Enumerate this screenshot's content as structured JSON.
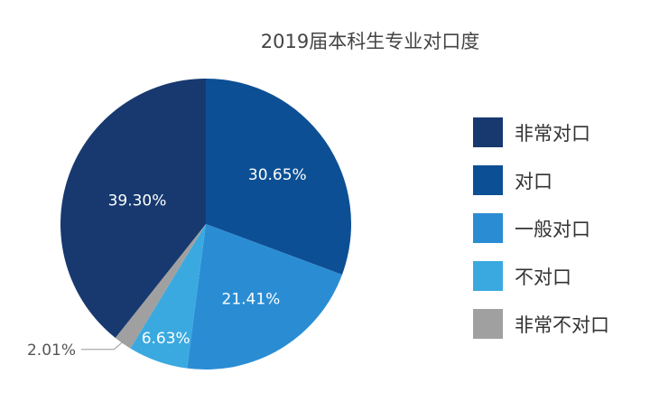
{
  "chart_data": {
    "type": "pie",
    "title": "2019届本科生专业对口度",
    "legend_position": "right",
    "slices": [
      {
        "label": "对口",
        "value": 30.65,
        "display": "30.65%",
        "color": "#0d4f94"
      },
      {
        "label": "一般对口",
        "value": 21.41,
        "display": "21.41%",
        "color": "#2a8dd4"
      },
      {
        "label": "不对口",
        "value": 6.63,
        "display": "6.63%",
        "color": "#3aa9e0"
      },
      {
        "label": "非常不对口",
        "value": 2.01,
        "display": "2.01%",
        "color": "#a0a0a0"
      },
      {
        "label": "非常对口",
        "value": 39.3,
        "display": "39.30%",
        "color": "#17396f"
      }
    ],
    "legend": [
      {
        "label": "非常对口",
        "color": "#17396f"
      },
      {
        "label": "对口",
        "color": "#0d4f94"
      },
      {
        "label": "一般对口",
        "color": "#2a8dd4"
      },
      {
        "label": "不对口",
        "color": "#3aa9e0"
      },
      {
        "label": "非常不对口",
        "color": "#a0a0a0"
      }
    ]
  }
}
